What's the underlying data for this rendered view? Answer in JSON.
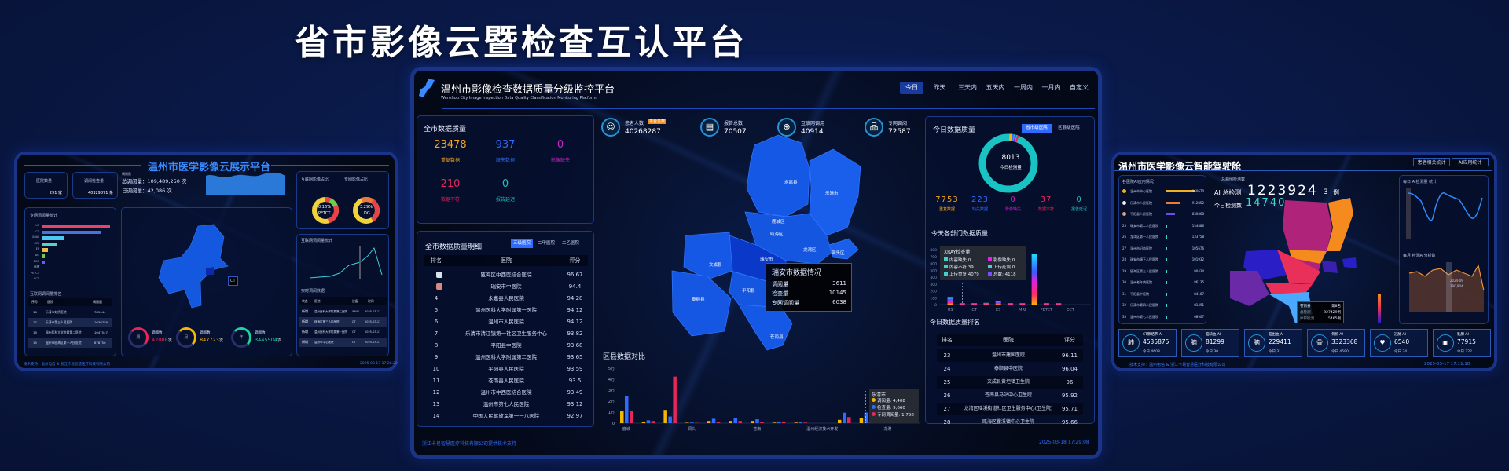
{
  "banner_title": "省市影像云暨检查互认平台",
  "center": {
    "title": "温州市影像检查数据质量分级监控平台",
    "subtitle": "Wenzhou City Image Inspection Data Quality Classification Monitoring Platform",
    "time_tabs": [
      "今日",
      "昨天",
      "三天内",
      "五天内",
      "一周内",
      "一月内",
      "自定义"
    ],
    "active_time_tab": "今日",
    "city_quality": {
      "title": "全市数据质量",
      "stats": [
        {
          "value": "23478",
          "label": "重复数据",
          "color": "#f5a623"
        },
        {
          "value": "937",
          "label": "缺失数据",
          "color": "#2f6bff"
        },
        {
          "value": "0",
          "label": "影像缺失",
          "color": "#d01fd0"
        },
        {
          "value": "210",
          "label": "数据不符",
          "color": "#e8265a"
        },
        {
          "value": "0",
          "label": "报告延迟",
          "color": "#19c3c3"
        }
      ]
    },
    "city_detail": {
      "title": "全市数据质量明细",
      "tabs": [
        "三级医院",
        "二甲医院",
        "二乙医院"
      ],
      "active_tab": "三级医院",
      "columns": [
        "排名",
        "医院",
        "评分"
      ],
      "rows": [
        {
          "rank": "2",
          "hospital": "瓯海区中西医结合医院",
          "score": "96.67",
          "medal": "silver"
        },
        {
          "rank": "3",
          "hospital": "瑞安市中医院",
          "score": "94.4",
          "medal": "bronze"
        },
        {
          "rank": "4",
          "hospital": "永嘉县人民医院",
          "score": "94.28"
        },
        {
          "rank": "5",
          "hospital": "温州医科大学附属第一医院",
          "score": "94.12"
        },
        {
          "rank": "6",
          "hospital": "温州市人民医院",
          "score": "94.12"
        },
        {
          "rank": "7",
          "hospital": "乐清市清江镇第一社区卫生服务中心",
          "score": "93.82"
        },
        {
          "rank": "8",
          "hospital": "平阳县中医院",
          "score": "93.68"
        },
        {
          "rank": "9",
          "hospital": "温州医科大学附属第二医院",
          "score": "93.65"
        },
        {
          "rank": "10",
          "hospital": "平阳县人民医院",
          "score": "93.59"
        },
        {
          "rank": "11",
          "hospital": "苍南县人民医院",
          "score": "93.5"
        },
        {
          "rank": "12",
          "hospital": "温州市中西医结合医院",
          "score": "93.49"
        },
        {
          "rank": "13",
          "hospital": "温州市第七人民医院",
          "score": "93.12"
        },
        {
          "rank": "14",
          "hospital": "中国人民解放军第一一八医院",
          "score": "92.97"
        }
      ]
    },
    "top_stats": [
      {
        "icon": "patients-icon",
        "glyph": "☺",
        "label": "患者人数",
        "badge": "平台总数",
        "value": "40268287"
      },
      {
        "icon": "report-icon",
        "glyph": "▤",
        "label": "报告总数",
        "value": "70507"
      },
      {
        "icon": "globe-icon",
        "glyph": "⊕",
        "label": "互联网调用",
        "value": "40914"
      },
      {
        "icon": "network-icon",
        "glyph": "品",
        "label": "专网调阅",
        "value": "72587"
      }
    ],
    "map": {
      "regions": [
        "永嘉县",
        "乐清市",
        "鹿城区",
        "瓯海区",
        "龙湾区",
        "洞头区",
        "瑞安市",
        "文成县",
        "泰顺县",
        "平阳县",
        "苍南县"
      ],
      "tooltip": {
        "title": "瑞安市数据情况",
        "rows": [
          {
            "label": "调阅量",
            "value": "3611"
          },
          {
            "label": "检查量",
            "value": "10145"
          },
          {
            "label": "专网调阅量",
            "value": "6038"
          }
        ]
      }
    },
    "district_chart": {
      "title": "区县数据对比",
      "type": "bar",
      "y_ticks": [
        "0",
        "1万",
        "2万",
        "3万",
        "4万",
        "5万"
      ],
      "ylim": [
        0,
        50000
      ],
      "categories": [
        "鹿城",
        "",
        "",
        "洞头",
        "",
        "",
        "苍南",
        "",
        "",
        "温州经济技术开发",
        "",
        "乐清市",
        "龙港"
      ],
      "shown_labels": [
        "鹿城",
        "洞头",
        "苍南",
        "温州经济技术开发",
        "龙港"
      ],
      "series": [
        {
          "name": "调阅量",
          "color": "#f5b800",
          "values": [
            10700,
            1200,
            12000,
            400,
            2000,
            2000,
            2000,
            500,
            500,
            0,
            3000,
            4408,
            200
          ]
        },
        {
          "name": "检查量",
          "color": "#2f6bff",
          "values": [
            24500,
            2600,
            6000,
            600,
            4000,
            5000,
            3500,
            1500,
            1000,
            0,
            9500,
            9660,
            200
          ]
        },
        {
          "name": "专网调阅量",
          "color": "#e8265a",
          "values": [
            11400,
            2000,
            42400,
            300,
            1300,
            2000,
            1200,
            1500,
            500,
            0,
            5500,
            1758,
            500
          ]
        }
      ],
      "tooltip": {
        "title": "乐清市",
        "rows": [
          "调阅量: 4,408",
          "检查量: 9,660",
          "专网调阅量: 1,758"
        ]
      }
    },
    "today_quality": {
      "title": "今日数据质量",
      "tabs": [
        "省市级医院",
        "区县级医院"
      ],
      "active_tab": "省市级医院",
      "total": "8013",
      "total_label": "今日检测量",
      "stats": [
        {
          "value": "7753",
          "label": "重复数据",
          "color": "#f5a623"
        },
        {
          "value": "223",
          "label": "缺失数据",
          "color": "#2f6bff"
        },
        {
          "value": "0",
          "label": "影像缺失",
          "color": "#d01fd0"
        },
        {
          "value": "37",
          "label": "数据不符",
          "color": "#e8265a"
        },
        {
          "value": "0",
          "label": "报告延迟",
          "color": "#19c3c3"
        }
      ],
      "ring_color": "#19c3c3"
    },
    "dept_chart": {
      "title": "今天各部门数据质量",
      "type": "bar",
      "y_ticks": [
        "0",
        "100",
        "200",
        "300",
        "400",
        "500",
        "600",
        "700",
        "800"
      ],
      "ylim": [
        0,
        800
      ],
      "categories": [
        "US",
        "",
        "CT",
        "",
        "ES",
        "",
        "MRI",
        "",
        "PETCT",
        "",
        "ECT"
      ],
      "values": [
        110,
        20,
        20,
        25,
        50,
        20,
        20,
        740,
        20,
        20,
        0
      ],
      "tooltip": {
        "title": "XRAY检查量",
        "items": [
          {
            "label": "内容缺失",
            "value": "0",
            "color": "#3fd0d0"
          },
          {
            "label": "影像缺失",
            "value": "0",
            "color": "#e81fe8"
          },
          {
            "label": "内容不符",
            "value": "39",
            "color": "#3fd0d0"
          },
          {
            "label": "上传延误",
            "value": "0",
            "color": "#3fd0d0"
          },
          {
            "label": "上传重复",
            "value": "4079",
            "color": "#3fd0d0"
          },
          {
            "label": "总数:",
            "value": "4118",
            "color": "#7a4cff"
          }
        ]
      }
    },
    "today_rank": {
      "title": "今日数据质量排名",
      "columns": [
        "排名",
        "医院",
        "评分"
      ],
      "rows": [
        {
          "rank": "23",
          "hospital": "温州市建国医院",
          "score": "96.11"
        },
        {
          "rank": "24",
          "hospital": "泰顺县中医院",
          "score": "96.04"
        },
        {
          "rank": "25",
          "hospital": "文成县黄坦镇卫生院",
          "score": "96"
        },
        {
          "rank": "26",
          "hospital": "苍南县马站中心卫生院",
          "score": "95.92"
        },
        {
          "rank": "27",
          "hospital": "龙湾区瑶溪街道社区卫生服务中心(卫生院)",
          "score": "95.71"
        },
        {
          "rank": "28",
          "hospital": "瓯海区瞿溪镇中心卫生院",
          "score": "95.66"
        }
      ]
    },
    "footer_left": "浙江卡易智慧医疗科技有限公司提供技术支持",
    "footer_time": "2025-03-18 17:29:08"
  },
  "left": {
    "title": "温州市医学影像云展示平台",
    "cards": [
      {
        "label": "医院数量",
        "value": "291 家"
      },
      {
        "label": "调阅检查量",
        "value": "40329871 条"
      }
    ],
    "totals_caption": "调阅数",
    "total_views": "总调阅量：109,489,250 次",
    "daily_views": "日调阅量：42,086 次",
    "donut_titles": [
      "互联网影像占比",
      "专网影像占比"
    ],
    "donuts": [
      {
        "pct": "0.16%",
        "name": "PETCT"
      },
      {
        "pct": "3.29%",
        "name": "DG"
      }
    ],
    "bar_title": "专网调阅量统计",
    "bar_categories": [
      "US",
      "CT",
      "XRAY",
      "MRI",
      "ES",
      "DG",
      "ECG",
      "病理",
      "PETCT",
      "ECT"
    ],
    "bar_values": [
      100,
      86,
      33,
      22,
      9,
      5,
      5,
      1.5,
      1.5,
      1.5
    ],
    "bar_colors": [
      "#e8436a",
      "#4a72d8",
      "#4cc7f0",
      "#4fd6c8",
      "#f0b84a",
      "#6ad04a",
      "#6a5cf0",
      "#a55cf0",
      "#e87a3a",
      "#e8436a"
    ],
    "rank_title": "互联网调阅量排名",
    "rank_columns": [
      "序号",
      "医院",
      "调阅量"
    ],
    "rank_rows": [
      {
        "no": "16",
        "hospital": "乐清市虹桥医院",
        "value": "785444"
      },
      {
        "no": "17",
        "hospital": "乐清市第三人民医院",
        "value": "1036759"
      },
      {
        "no": "18",
        "hospital": "温州医科大学附属第二医院",
        "value": "1047547"
      },
      {
        "no": "19",
        "hospital": "温州市瓯海区第一人民医院",
        "value": "878756"
      }
    ],
    "line_title": "互联网调阅量统计",
    "live_title": "实时调阅数据",
    "live_columns": [
      "状态",
      "医院",
      "设备",
      "时间"
    ],
    "live_rows": [
      {
        "status": "新增",
        "hospital": "温州医科大学附属第二医院",
        "device": "XRAY",
        "time": "2025-03-17"
      },
      {
        "status": "新增",
        "hospital": "瓯海区第三人民医院",
        "device": "CT",
        "time": "2025-03-17"
      },
      {
        "status": "新增",
        "hospital": "温州医科大学附属第一医院",
        "device": "CT",
        "time": "2025-03-17"
      },
      {
        "status": "新增",
        "hospital": "温州市中心医院",
        "device": "CT",
        "time": "2025-03-17"
      }
    ],
    "rings": [
      {
        "glyph": "周",
        "caption": "调阅数",
        "value": "42086",
        "unit": "次",
        "color": "#e8265a"
      },
      {
        "glyph": "月",
        "caption": "调阅数",
        "value": "847723",
        "unit": "次",
        "color": "#f5b800"
      },
      {
        "glyph": "年",
        "caption": "调阅数",
        "value": "3445504",
        "unit": "次",
        "color": "#19d6a0"
      }
    ],
    "footer": "技术支持：温州电信 & 浙江卡易智慧医疗科技有限公司",
    "footer_time": "2025-03-17 17:28:20"
  },
  "right": {
    "title": "温州市医学影像云智能驾驶舱",
    "buttons": [
      "患者相关统计",
      "AI应用统计"
    ],
    "hospital_panel_title": "各医院AI应用情况",
    "hospitals": [
      {
        "rank": "",
        "name": "温州市中心医院",
        "value": "960670",
        "bar": 1,
        "color": "#f0b020"
      },
      {
        "rank": "",
        "name": "乐清市人民医院",
        "value": "912852",
        "bar": 0.5,
        "color": "#f07a30"
      },
      {
        "rank": "",
        "name": "平阳县人民医院",
        "value": "830868",
        "bar": 0.3,
        "color": "#6a4cf0"
      },
      {
        "rank": "25",
        "name": "瑞安市第二人民医院",
        "value": "134886",
        "bar": 0.02,
        "color": "#3fd0d0"
      },
      {
        "rank": "26",
        "name": "龙湾区第一人民医院",
        "value": "133758",
        "bar": 0.02,
        "color": "#3fd0d0"
      },
      {
        "rank": "27",
        "name": "温州市妇幼医院",
        "value": "105676",
        "bar": 0.02,
        "color": "#3fd0d0"
      },
      {
        "rank": "28",
        "name": "瑞安市塘下人民医院",
        "value": "101932",
        "bar": 0.02,
        "color": "#3fd0d0"
      },
      {
        "rank": "29",
        "name": "瓯海区第三人民医院",
        "value": "90434",
        "bar": 0.02,
        "color": "#3fd0d0"
      },
      {
        "rank": "30",
        "name": "温州老年病医院",
        "value": "86135",
        "bar": 0.02,
        "color": "#3fd0d0"
      },
      {
        "rank": "31",
        "name": "平阳县中医院",
        "value": "84187",
        "bar": 0.02,
        "color": "#3fd0d0"
      },
      {
        "rank": "32",
        "name": "乐清市第四人民医院",
        "value": "81491",
        "bar": 0.02,
        "color": "#3fd0d0"
      },
      {
        "rank": "33",
        "name": "温州市第七人民医院",
        "value": "68907",
        "bar": 0.02,
        "color": "#3fd0d0"
      }
    ],
    "total_caption": "总病例检测数",
    "ai_total_label": "AI 总检测",
    "ai_total_value": "1223924",
    "ai_total_roll": "3",
    "unit": "例",
    "today_label": "今日检测数",
    "today_value": "14740",
    "map_tooltip": {
      "region": "苍南县",
      "rank": "第8名",
      "rows": [
        {
          "label": "总检测",
          "value": "927429例"
        },
        {
          "label": "今日检测",
          "value": "5465例"
        }
      ]
    },
    "daily_chart_title": "每日 AI检测量 统计",
    "monthly_chart_title": "每月 检测AI分析数",
    "monthly_tooltip": {
      "label": "2024-09",
      "value": "380,804"
    },
    "ai_cards": [
      {
        "icon": "lung-icon",
        "glyph": "肺",
        "name": "CT肺结节 AI",
        "value": "4535875",
        "today": "今日 4608"
      },
      {
        "icon": "brain-icon",
        "glyph": "脑",
        "name": "脑缺血 AI",
        "value": "81299",
        "today": "今日 30"
      },
      {
        "icon": "brain-icon",
        "glyph": "脑",
        "name": "脑出血 AI",
        "value": "229411",
        "today": "今日 31"
      },
      {
        "icon": "lung-icon",
        "glyph": "骨",
        "name": "骨折 AI",
        "value": "3323368",
        "today": "今日 4590"
      },
      {
        "icon": "heart-icon",
        "glyph": "♥",
        "name": "冠脉 AI",
        "value": "6540",
        "today": "今日 34"
      },
      {
        "icon": "monitor-icon",
        "glyph": "▣",
        "name": "乳腺 AI",
        "value": "77915",
        "today": "今日 222"
      }
    ],
    "footer": "技术支持：温州电信 & 浙江卡易智慧医疗科技有限公司",
    "footer_time": "2025-03-17 17:11:10"
  }
}
